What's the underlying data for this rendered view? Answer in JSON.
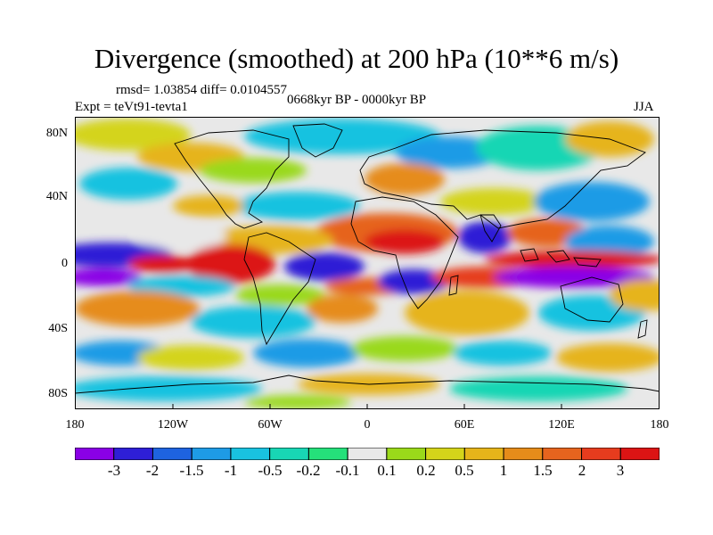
{
  "title": "Divergence (smoothed) at 200 hPa (10**6 m/s)",
  "stats": "rmsd= 1.03854 diff= 0.0104557",
  "experiment": "Expt = teVt91-tevta1",
  "period": "0668kyr BP - 0000kyr BP",
  "season": "JJA",
  "lat_labels": [
    "80N",
    "40N",
    "0",
    "40S",
    "80S"
  ],
  "lon_labels": [
    "180",
    "120W",
    "60W",
    "0",
    "60E",
    "120E",
    "180"
  ],
  "colorbar": {
    "colors": [
      "#8a00e6",
      "#2e1fd6",
      "#1e63e0",
      "#1e9be6",
      "#19c2e0",
      "#18d6b4",
      "#25e07a",
      "#e8e8e8",
      "#9ad91a",
      "#d4d41a",
      "#e6b41a",
      "#e68c1a",
      "#e6641e",
      "#e63c1e",
      "#dc1414"
    ],
    "labels": [
      "-3",
      "-2",
      "-1.5",
      "-1",
      "-0.5",
      "-0.2",
      "-0.1",
      "0.1",
      "0.2",
      "0.5",
      "1",
      "1.5",
      "2",
      "3"
    ]
  }
}
